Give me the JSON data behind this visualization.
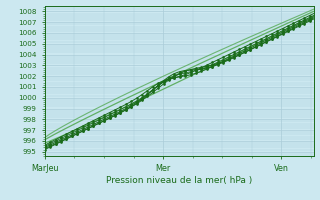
{
  "xlabel": "Pression niveau de la mer( hPa )",
  "background_color": "#cce8f0",
  "grid_color": "#aaccd8",
  "line_color_dark": "#1a6b1a",
  "line_color_light": "#55aa55",
  "ytick_values": [
    995,
    996,
    997,
    998,
    999,
    1000,
    1001,
    1002,
    1003,
    1004,
    1005,
    1006,
    1007,
    1008
  ],
  "ylim": [
    994.6,
    1008.5
  ],
  "xtick_labels": [
    "MarJeu",
    "Mer",
    "Ven"
  ],
  "xtick_positions": [
    0,
    0.44,
    0.88
  ],
  "xlim": [
    0,
    1.0
  ],
  "n_points": 200
}
